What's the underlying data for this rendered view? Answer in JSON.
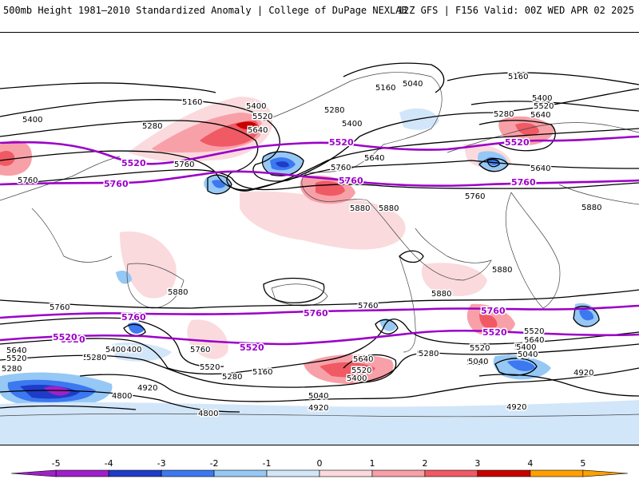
{
  "header": {
    "left": "500mb Height 1981–2010 Standardized Anomaly | College of DuPage NEXLAB",
    "right": "12Z GFS | F156 Valid: 00Z WED APR 02 2025"
  },
  "colors": {
    "neg5": "#a020c8",
    "neg4": "#1e3cc8",
    "neg3": "#3c78f0",
    "neg2": "#96c8f5",
    "neg1": "#d2e6fa",
    "pos1": "#fadadd",
    "pos2": "#f8a0a8",
    "pos3": "#f05a64",
    "pos4": "#c80000",
    "pos5": "#ffa000",
    "contour": "#000000",
    "highlight_contour": "#9b00c8"
  },
  "colorbar": {
    "ticks": [
      "-5",
      "-4",
      "-3",
      "-2",
      "-1",
      "0",
      "1",
      "2",
      "3",
      "4",
      "5"
    ]
  },
  "contour_labels": {
    "black": [
      "5400",
      "5160",
      "5040",
      "5160",
      "5400",
      "5520",
      "5640",
      "5280",
      "5280",
      "5160",
      "5400",
      "5520",
      "5640",
      "5280",
      "5400",
      "5640",
      "5640",
      "5760",
      "5880",
      "5760",
      "5760",
      "5760",
      "5880",
      "5880",
      "5880",
      "5880",
      "5760",
      "5760",
      "5640",
      "5520",
      "5400",
      "5280",
      "5040",
      "4920",
      "4800",
      "4800",
      "5760",
      "5520",
      "5280",
      "5160",
      "5040",
      "4920",
      "5640",
      "5520",
      "5400",
      "5280",
      "5160",
      "5040",
      "4920",
      "4920",
      "5400",
      "5640",
      "5520",
      "5400",
      "5040",
      "5280",
      "5040",
      "5400",
      "5640",
      "5520",
      "5280",
      "5880"
    ],
    "purple": [
      "5520",
      "5520",
      "5520",
      "5520",
      "5760",
      "5760",
      "5760",
      "5760",
      "5760",
      "5760",
      "5520",
      "5520",
      "5520"
    ]
  }
}
